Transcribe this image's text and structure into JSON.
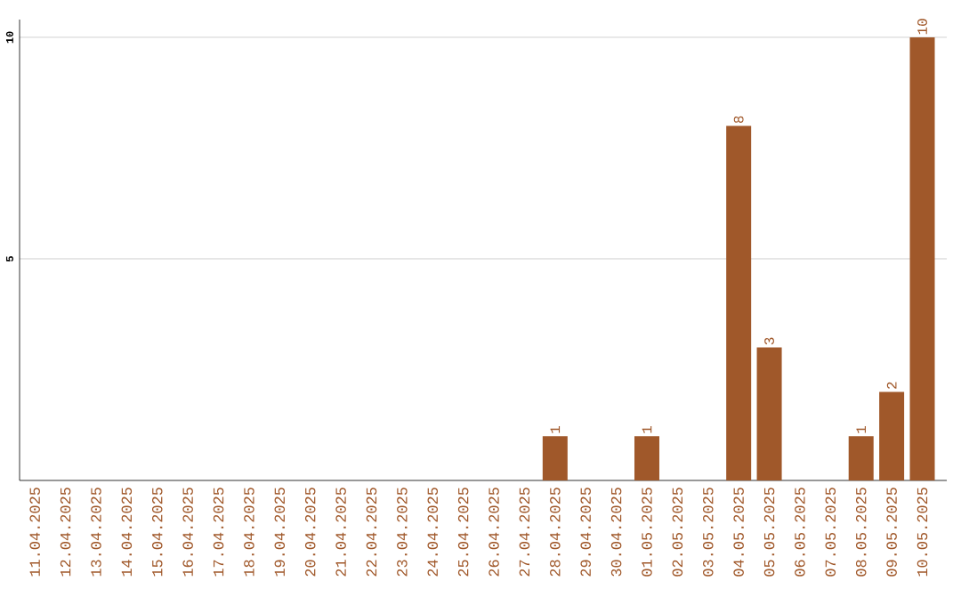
{
  "chart_data": {
    "type": "bar",
    "categories": [
      "11.04.2025",
      "12.04.2025",
      "13.04.2025",
      "14.04.2025",
      "15.04.2025",
      "16.04.2025",
      "17.04.2025",
      "18.04.2025",
      "19.04.2025",
      "20.04.2025",
      "21.04.2025",
      "22.04.2025",
      "23.04.2025",
      "24.04.2025",
      "25.04.2025",
      "26.04.2025",
      "27.04.2025",
      "28.04.2025",
      "29.04.2025",
      "30.04.2025",
      "01.05.2025",
      "02.05.2025",
      "03.05.2025",
      "04.05.2025",
      "05.05.2025",
      "06.05.2025",
      "07.05.2025",
      "08.05.2025",
      "09.05.2025",
      "10.05.2025"
    ],
    "values": [
      0,
      0,
      0,
      0,
      0,
      0,
      0,
      0,
      0,
      0,
      0,
      0,
      0,
      0,
      0,
      0,
      0,
      1,
      0,
      0,
      1,
      0,
      0,
      8,
      3,
      0,
      0,
      1,
      2,
      10
    ],
    "value_labels": [
      null,
      null,
      null,
      null,
      null,
      null,
      null,
      null,
      null,
      null,
      null,
      null,
      null,
      null,
      null,
      null,
      null,
      "1",
      null,
      null,
      "1",
      null,
      null,
      "8",
      "3",
      null,
      null,
      "1",
      "2",
      "10"
    ],
    "color": "#a0582a",
    "ylim": [
      0,
      10.4
    ],
    "yticks": [
      5,
      10
    ],
    "grid": "y"
  }
}
